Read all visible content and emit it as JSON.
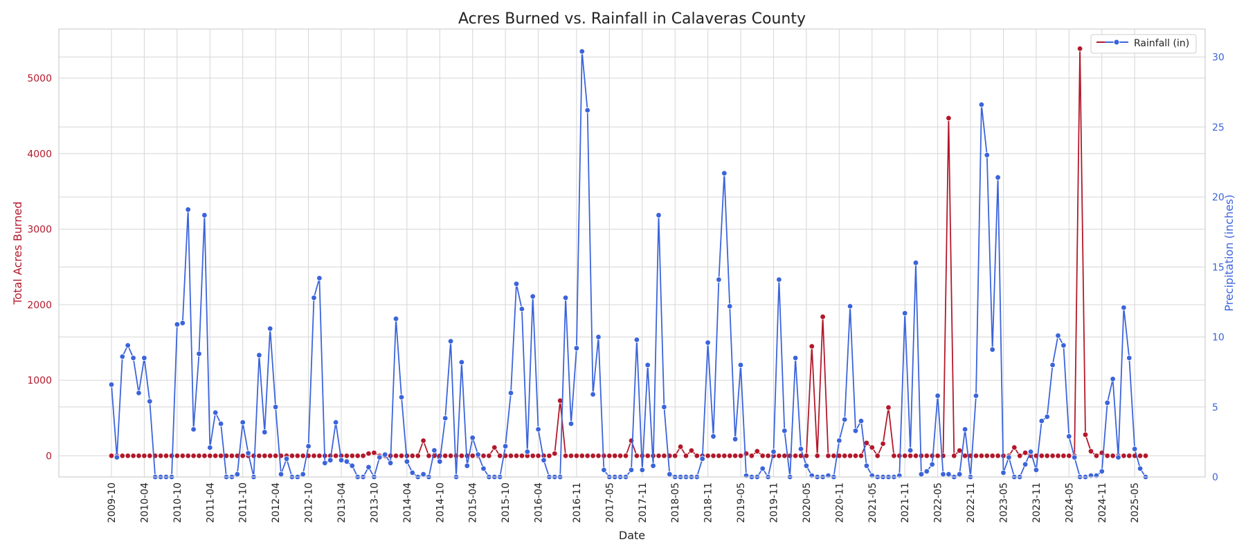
{
  "chart_data": {
    "type": "line",
    "title": "Acres Burned vs. Rainfall in Calaveras County",
    "xlabel": "Date",
    "ylabel_left": "Total Acres Burned",
    "ylabel_right": "Precipitation (inches)",
    "x_start": "2009-10",
    "x_end": "2025-07",
    "y_left_range": [
      -280,
      5650
    ],
    "y_right_range": [
      0,
      32
    ],
    "y_left_ticks": [
      0,
      1000,
      2000,
      3000,
      4000,
      5000
    ],
    "y_right_ticks": [
      0,
      5,
      10,
      15,
      20,
      25,
      30
    ],
    "x_ticks": [
      "2009-10",
      "2010-04",
      "2010-10",
      "2011-04",
      "2011-10",
      "2012-04",
      "2012-10",
      "2013-04",
      "2013-10",
      "2014-04",
      "2014-10",
      "2015-04",
      "2015-10",
      "2016-04",
      "2016-11",
      "2017-05",
      "2017-11",
      "2018-05",
      "2018-11",
      "2019-05",
      "2019-11",
      "2020-05",
      "2020-11",
      "2021-05",
      "2021-11",
      "2022-05",
      "2022-11",
      "2023-05",
      "2023-11",
      "2024-05",
      "2024-11",
      "2025-05"
    ],
    "grid": true,
    "legend_position": "top-right",
    "colors": {
      "acres": "#b2182b",
      "rain": "#3b64db",
      "grid": "#d6d6d6"
    },
    "series": [
      {
        "name": "",
        "axis": "left",
        "color": "#b2182b",
        "x": [
          "2009-10",
          "2010-08",
          "2013-09",
          "2013-10",
          "2014-07",
          "2015-08",
          "2016-07",
          "2016-08",
          "2017-06",
          "2017-09",
          "2018-06",
          "2018-08",
          "2019-06",
          "2019-08",
          "2020-06",
          "2020-08",
          "2021-04",
          "2021-05",
          "2021-07",
          "2021-08",
          "2022-07",
          "2022-09",
          "2023-07",
          "2023-09",
          "2024-07",
          "2024-08",
          "2024-09",
          "2024-11",
          "2025-07"
        ],
        "y": [
          0,
          0,
          30,
          40,
          200,
          110,
          30,
          730,
          0,
          200,
          120,
          70,
          30,
          60,
          1450,
          1840,
          170,
          110,
          160,
          640,
          4470,
          70,
          110,
          40,
          5390,
          280,
          60,
          40,
          0
        ]
      },
      {
        "name": "Rainfall (in)",
        "axis": "right",
        "color": "#3b64db",
        "x": [
          "2009-10",
          "2009-11",
          "2009-12",
          "2010-01",
          "2010-02",
          "2010-03",
          "2010-04",
          "2010-05",
          "2010-06",
          "2010-07",
          "2010-08",
          "2010-09",
          "2010-10",
          "2010-11",
          "2010-12",
          "2011-01",
          "2011-02",
          "2011-03",
          "2011-04",
          "2011-05",
          "2011-06",
          "2011-07",
          "2011-08",
          "2011-09",
          "2011-10",
          "2011-11",
          "2011-12",
          "2012-01",
          "2012-02",
          "2012-03",
          "2012-04",
          "2012-05",
          "2012-06",
          "2012-07",
          "2012-08",
          "2012-09",
          "2012-10",
          "2012-11",
          "2012-12",
          "2013-01",
          "2013-02",
          "2013-03",
          "2013-04",
          "2013-05",
          "2013-06",
          "2013-07",
          "2013-08",
          "2013-09",
          "2013-10",
          "2013-11",
          "2013-12",
          "2014-01",
          "2014-02",
          "2014-03",
          "2014-04",
          "2014-05",
          "2014-06",
          "2014-07",
          "2014-08",
          "2014-09",
          "2014-10",
          "2014-11",
          "2014-12",
          "2015-01",
          "2015-02",
          "2015-03",
          "2015-04",
          "2015-05",
          "2015-06",
          "2015-07",
          "2015-08",
          "2015-09",
          "2015-10",
          "2015-11",
          "2015-12",
          "2016-01",
          "2016-02",
          "2016-03",
          "2016-04",
          "2016-05",
          "2016-06",
          "2016-07",
          "2016-08",
          "2016-09",
          "2016-10",
          "2016-11",
          "2016-12",
          "2017-01",
          "2017-02",
          "2017-03",
          "2017-04",
          "2017-05",
          "2017-06",
          "2017-07",
          "2017-08",
          "2017-09",
          "2017-10",
          "2017-11",
          "2017-12",
          "2018-01",
          "2018-02",
          "2018-03",
          "2018-04",
          "2018-05",
          "2018-06",
          "2018-07",
          "2018-08",
          "2018-09",
          "2018-10",
          "2018-11",
          "2018-12",
          "2019-01",
          "2019-02",
          "2019-03",
          "2019-04",
          "2019-05",
          "2019-06",
          "2019-07",
          "2019-08",
          "2019-09",
          "2019-10",
          "2019-11",
          "2019-12",
          "2020-01",
          "2020-02",
          "2020-03",
          "2020-04",
          "2020-05",
          "2020-06",
          "2020-07",
          "2020-08",
          "2020-09",
          "2020-10",
          "2020-11",
          "2020-12",
          "2021-01",
          "2021-02",
          "2021-03",
          "2021-04",
          "2021-05",
          "2021-06",
          "2021-07",
          "2021-08",
          "2021-09",
          "2021-10",
          "2021-11",
          "2021-12",
          "2022-01",
          "2022-02",
          "2022-03",
          "2022-04",
          "2022-05",
          "2022-06",
          "2022-07",
          "2022-08",
          "2022-09",
          "2022-10",
          "2022-11",
          "2022-12",
          "2023-01",
          "2023-02",
          "2023-03",
          "2023-04",
          "2023-05",
          "2023-06",
          "2023-07",
          "2023-08",
          "2023-09",
          "2023-10",
          "2023-11",
          "2023-12",
          "2024-01",
          "2024-02",
          "2024-03",
          "2024-04",
          "2024-05",
          "2024-06",
          "2024-07",
          "2024-08",
          "2024-09",
          "2024-10",
          "2024-11",
          "2024-12",
          "2025-01",
          "2025-02",
          "2025-03",
          "2025-04",
          "2025-05",
          "2025-06",
          "2025-07"
        ],
        "y": [
          6.6,
          1.4,
          8.6,
          9.4,
          8.5,
          6.0,
          8.5,
          5.4,
          0,
          0,
          0,
          0,
          10.9,
          11.0,
          19.1,
          3.4,
          8.8,
          18.7,
          2.1,
          4.6,
          3.8,
          0,
          0,
          0.2,
          3.9,
          1.7,
          0,
          8.7,
          3.2,
          10.6,
          5.0,
          0.2,
          1.3,
          0,
          0,
          0.2,
          2.2,
          12.8,
          14.2,
          1.0,
          1.2,
          3.9,
          1.2,
          1.1,
          0.8,
          0,
          0,
          0.7,
          0,
          1.4,
          1.6,
          1.0,
          11.3,
          5.7,
          1.1,
          0.3,
          0,
          0.2,
          0,
          1.9,
          1.1,
          4.2,
          9.7,
          0,
          8.2,
          0.8,
          2.8,
          1.6,
          0.6,
          0,
          0,
          0,
          2.2,
          6.0,
          13.8,
          12.0,
          1.8,
          12.9,
          3.4,
          1.2,
          0,
          0,
          0,
          12.8,
          3.8,
          9.2,
          30.4,
          26.2,
          5.9,
          10.0,
          0.5,
          0,
          0,
          0,
          0,
          0.5,
          9.8,
          0.5,
          8.0,
          0.8,
          18.7,
          5.0,
          0.2,
          0,
          0,
          0,
          0,
          0,
          1.3,
          9.6,
          2.9,
          14.1,
          21.7,
          12.2,
          2.7,
          8.0,
          0.1,
          0,
          0,
          0.6,
          0,
          1.8,
          14.1,
          3.3,
          0,
          8.5,
          2.0,
          0.8,
          0.1,
          0,
          0,
          0.1,
          0,
          2.6,
          4.1,
          12.2,
          3.3,
          4.0,
          0.8,
          0.1,
          0,
          0,
          0,
          0,
          0.1,
          11.7,
          1.9,
          15.3,
          0.2,
          0.4,
          0.9,
          5.8,
          0.2,
          0.2,
          0,
          0.2,
          3.4,
          0,
          5.8,
          26.6,
          23.0,
          9.1,
          21.4,
          0.3,
          1.4,
          0,
          0,
          0.9,
          1.8,
          0.5,
          4.0,
          4.3,
          8.0,
          10.1,
          9.4,
          2.9,
          1.4,
          0,
          0,
          0.1,
          0.1,
          0.4,
          5.3,
          7.0,
          1.4,
          12.1,
          8.5,
          2.0,
          0.6,
          0
        ]
      }
    ]
  }
}
